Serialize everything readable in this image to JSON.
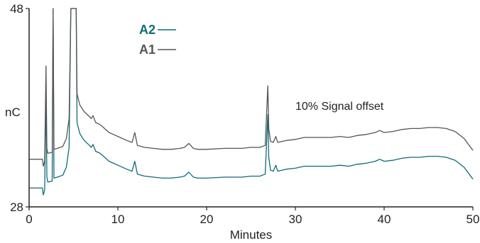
{
  "chart_data": {
    "type": "line",
    "xlabel": "Minutes",
    "ylabel": "nC",
    "xlim": [
      0,
      50
    ],
    "ylim": [
      28,
      48
    ],
    "x_ticks": [
      0,
      10,
      20,
      30,
      40,
      50
    ],
    "y_ticks": [
      28,
      48
    ],
    "annotations": [
      {
        "text": "10% Signal offset",
        "x": 38,
        "y": 37.8
      }
    ],
    "legend_position": "top-left",
    "series": [
      {
        "name": "A2",
        "color": "#0f6b78",
        "points": [
          [
            0,
            29.9
          ],
          [
            1.5,
            29.9
          ],
          [
            1.6,
            29.2
          ],
          [
            1.75,
            29.7
          ],
          [
            1.9,
            39.3
          ],
          [
            2.0,
            31.0
          ],
          [
            2.1,
            30.5
          ],
          [
            2.6,
            30.6
          ],
          [
            2.7,
            48.0
          ],
          [
            2.8,
            30.9
          ],
          [
            3.2,
            31.0
          ],
          [
            3.8,
            31.2
          ],
          [
            4.2,
            32.0
          ],
          [
            4.5,
            34.0
          ],
          [
            4.7,
            48.0
          ],
          [
            5.3,
            48.0
          ],
          [
            5.4,
            36.5
          ],
          [
            5.7,
            35.4
          ],
          [
            6.2,
            34.7
          ],
          [
            6.8,
            34.2
          ],
          [
            7.0,
            34.0
          ],
          [
            7.2,
            34.3
          ],
          [
            7.5,
            33.6
          ],
          [
            8.0,
            33.4
          ],
          [
            8.5,
            33.0
          ],
          [
            9.0,
            32.6
          ],
          [
            9.5,
            32.4
          ],
          [
            10,
            32.2
          ],
          [
            11,
            31.8
          ],
          [
            11.6,
            31.6
          ],
          [
            11.9,
            32.6
          ],
          [
            12.2,
            31.3
          ],
          [
            13,
            31.1
          ],
          [
            14,
            31.0
          ],
          [
            15,
            30.9
          ],
          [
            16,
            30.9
          ],
          [
            17,
            31.0
          ],
          [
            17.5,
            31.1
          ],
          [
            18,
            31.5
          ],
          [
            18.5,
            31.0
          ],
          [
            19,
            30.9
          ],
          [
            20,
            30.9
          ],
          [
            22,
            31.0
          ],
          [
            24,
            31.0
          ],
          [
            25,
            31.1
          ],
          [
            26,
            31.1
          ],
          [
            26.6,
            31.3
          ],
          [
            26.9,
            37.3
          ],
          [
            27.0,
            33.0
          ],
          [
            27.2,
            31.7
          ],
          [
            27.5,
            31.6
          ],
          [
            27.8,
            32.2
          ],
          [
            28.0,
            31.6
          ],
          [
            28.5,
            31.7
          ],
          [
            29,
            31.8
          ],
          [
            30,
            31.9
          ],
          [
            31,
            32.1
          ],
          [
            32,
            32.1
          ],
          [
            33,
            32.1
          ],
          [
            34,
            32.1
          ],
          [
            35,
            32.2
          ],
          [
            36,
            32.1
          ],
          [
            37,
            32.3
          ],
          [
            38,
            32.4
          ],
          [
            39,
            32.6
          ],
          [
            39.5,
            32.8
          ],
          [
            40,
            32.6
          ],
          [
            41,
            32.7
          ],
          [
            42,
            32.9
          ],
          [
            43,
            33.0
          ],
          [
            44,
            33.0
          ],
          [
            45,
            33.1
          ],
          [
            46,
            33.1
          ],
          [
            47,
            33.0
          ],
          [
            48,
            32.7
          ],
          [
            49,
            32.0
          ],
          [
            50,
            30.8
          ]
        ]
      },
      {
        "name": "A1",
        "color": "#555555",
        "points": [
          [
            0,
            32.8
          ],
          [
            1.5,
            32.8
          ],
          [
            1.6,
            32.1
          ],
          [
            1.75,
            32.6
          ],
          [
            1.9,
            42.2
          ],
          [
            2.0,
            33.9
          ],
          [
            2.1,
            33.4
          ],
          [
            2.6,
            33.5
          ],
          [
            2.7,
            48.0
          ],
          [
            2.8,
            33.8
          ],
          [
            3.2,
            33.9
          ],
          [
            3.8,
            34.1
          ],
          [
            4.2,
            34.9
          ],
          [
            4.5,
            36.9
          ],
          [
            4.7,
            48.0
          ],
          [
            5.3,
            48.0
          ],
          [
            5.4,
            39.4
          ],
          [
            5.7,
            38.3
          ],
          [
            6.2,
            37.6
          ],
          [
            6.8,
            37.1
          ],
          [
            7.0,
            36.9
          ],
          [
            7.2,
            37.2
          ],
          [
            7.5,
            36.5
          ],
          [
            8.0,
            36.3
          ],
          [
            8.5,
            35.9
          ],
          [
            9.0,
            35.5
          ],
          [
            9.5,
            35.3
          ],
          [
            10,
            35.1
          ],
          [
            11,
            34.7
          ],
          [
            11.6,
            34.5
          ],
          [
            11.9,
            35.5
          ],
          [
            12.2,
            34.2
          ],
          [
            13,
            34.0
          ],
          [
            14,
            33.9
          ],
          [
            15,
            33.8
          ],
          [
            16,
            33.8
          ],
          [
            17,
            33.9
          ],
          [
            17.5,
            34.0
          ],
          [
            18,
            34.4
          ],
          [
            18.5,
            33.9
          ],
          [
            19,
            33.8
          ],
          [
            20,
            33.8
          ],
          [
            22,
            33.9
          ],
          [
            24,
            33.9
          ],
          [
            25,
            34.0
          ],
          [
            26,
            34.0
          ],
          [
            26.6,
            34.2
          ],
          [
            26.9,
            40.2
          ],
          [
            27.0,
            35.9
          ],
          [
            27.2,
            34.6
          ],
          [
            27.5,
            34.5
          ],
          [
            27.8,
            35.1
          ],
          [
            28.0,
            34.5
          ],
          [
            28.5,
            34.6
          ],
          [
            29,
            34.7
          ],
          [
            30,
            34.8
          ],
          [
            31,
            35.0
          ],
          [
            32,
            35.0
          ],
          [
            33,
            35.0
          ],
          [
            34,
            35.0
          ],
          [
            35,
            35.1
          ],
          [
            36,
            35.0
          ],
          [
            37,
            35.2
          ],
          [
            38,
            35.3
          ],
          [
            39,
            35.5
          ],
          [
            39.5,
            35.7
          ],
          [
            40,
            35.5
          ],
          [
            41,
            35.6
          ],
          [
            42,
            35.8
          ],
          [
            43,
            35.9
          ],
          [
            44,
            35.9
          ],
          [
            45,
            36.0
          ],
          [
            46,
            36.0
          ],
          [
            47,
            35.9
          ],
          [
            48,
            35.6
          ],
          [
            49,
            34.9
          ],
          [
            50,
            33.7
          ]
        ]
      }
    ]
  }
}
